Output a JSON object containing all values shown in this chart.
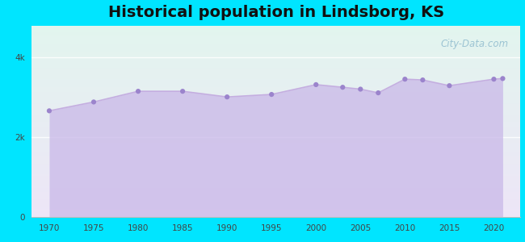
{
  "title": "Historical population in Lindsborg, KS",
  "years": [
    1970,
    1975,
    1980,
    1985,
    1990,
    1995,
    2000,
    2003,
    2005,
    2007,
    2010,
    2012,
    2015,
    2020,
    2021
  ],
  "population": [
    2666,
    2887,
    3155,
    3155,
    3013,
    3076,
    3321,
    3255,
    3208,
    3116,
    3458,
    3438,
    3295,
    3458,
    3474
  ],
  "line_color": "#c4aee0",
  "fill_color": "#c9b8e8",
  "fill_alpha": 0.75,
  "marker_color": "#9b84cc",
  "marker_size": 20,
  "bg_color_top": "#e2f5ee",
  "bg_color_bottom": "#ede5f7",
  "outer_bg": "#00e5ff",
  "panel_bg": "#f8f8f8",
  "yticks": [
    0,
    2000,
    4000
  ],
  "ytick_labels": [
    "0",
    "2k",
    "4k"
  ],
  "xticks": [
    1970,
    1975,
    1980,
    1985,
    1990,
    1995,
    2000,
    2005,
    2010,
    2015,
    2020
  ],
  "ylim": [
    0,
    4800
  ],
  "xlim": [
    1968,
    2023
  ],
  "title_fontsize": 14,
  "title_color": "#111111",
  "watermark": "City-Data.com"
}
